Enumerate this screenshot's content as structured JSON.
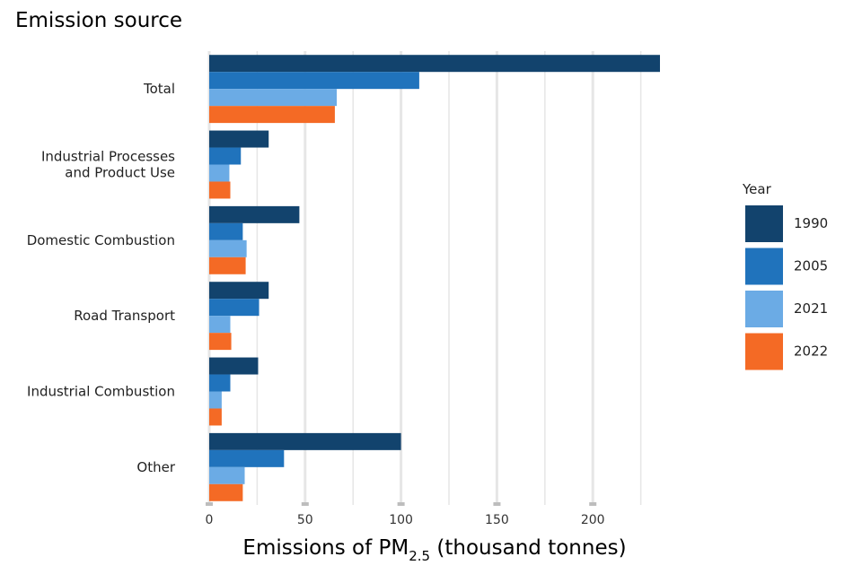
{
  "chart_data": {
    "type": "bar",
    "orientation": "horizontal",
    "y_axis_title": "Emission source",
    "x_axis_title_main": "Emissions of PM",
    "x_axis_title_sub": "2.5",
    "x_axis_title_tail": " (thousand tonnes)",
    "categories": [
      [
        "Total"
      ],
      [
        "Industrial Processes",
        "and Product Use"
      ],
      [
        "Domestic Combustion"
      ],
      [
        "Road Transport"
      ],
      [
        "Industrial Combustion"
      ],
      [
        "Other"
      ]
    ],
    "xlim": [
      0,
      235
    ],
    "x_ticks": [
      0,
      50,
      100,
      150,
      200
    ],
    "x_tick_labels": [
      "0",
      "50",
      "100",
      "150",
      "200"
    ],
    "grid": true,
    "legend": {
      "title": "Year",
      "placement": "right"
    },
    "series": [
      {
        "name": "1990",
        "color": "#12436d",
        "values": [
          235,
          31,
          47,
          31,
          25.5,
          100
        ]
      },
      {
        "name": "2005",
        "color": "#2073bc",
        "values": [
          109.5,
          16.5,
          17.5,
          26,
          11,
          39
        ]
      },
      {
        "name": "2021",
        "color": "#6babe5",
        "values": [
          66.5,
          10.5,
          19.5,
          11,
          6.5,
          18.5
        ]
      },
      {
        "name": "2022",
        "color": "#f46a25",
        "values": [
          65.5,
          11,
          19,
          11.5,
          6.5,
          17.5
        ]
      }
    ]
  }
}
